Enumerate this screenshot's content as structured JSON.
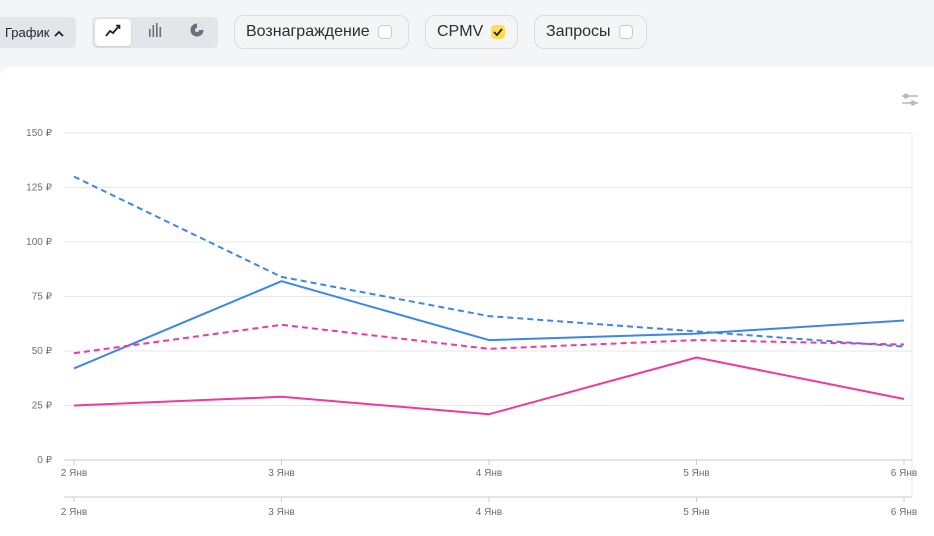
{
  "toolbar": {
    "graph_label": "График",
    "metrics": [
      {
        "label": "Вознаграждение",
        "checked": false
      },
      {
        "label": "CPMV",
        "checked": true
      },
      {
        "label": "Запросы",
        "checked": false
      }
    ],
    "chart_types": [
      "line-chart-icon",
      "bar-chart-icon",
      "pie-chart-icon"
    ],
    "active_chart_type": "line-chart-icon"
  },
  "chart_data": {
    "type": "line",
    "categories": [
      "2 Янв",
      "3 Янв",
      "4 Янв",
      "5 Янв",
      "6 Янв"
    ],
    "secondary_x_labels": [
      "2 Янв",
      "3 Янв",
      "4 Янв",
      "5 Янв",
      "6 Янв"
    ],
    "y_ticks": [
      "0 ₽",
      "25 ₽",
      "50 ₽",
      "75 ₽",
      "100 ₽",
      "125 ₽",
      "150 ₽"
    ],
    "ylim": [
      0,
      150
    ],
    "grid": true,
    "series": [
      {
        "values": [
          130,
          84,
          66,
          59,
          52
        ],
        "color": "#3d86e8",
        "dashed": true
      },
      {
        "values": [
          42,
          82,
          55,
          58,
          64
        ],
        "color": "#3d86e8",
        "dashed": false
      },
      {
        "values": [
          49,
          62,
          51,
          55,
          53
        ],
        "color": "#ee3a9f",
        "dashed": true
      },
      {
        "values": [
          25,
          29,
          21,
          47,
          28
        ],
        "color": "#ee3a9f",
        "dashed": false
      }
    ]
  }
}
